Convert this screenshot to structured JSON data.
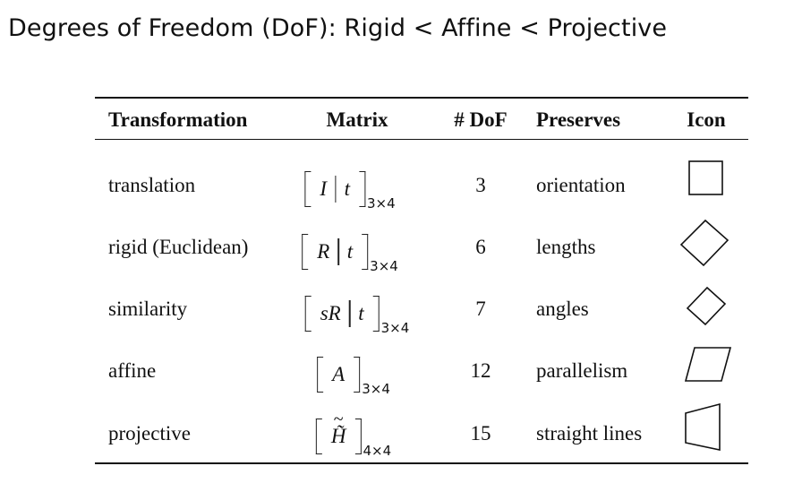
{
  "title": "Degrees of Freedom (DoF): Rigid < Affine < Projective",
  "table": {
    "headers": {
      "transformation": "Transformation",
      "matrix": "Matrix",
      "dof": "# DoF",
      "preserves": "Preserves",
      "icon": "Icon"
    },
    "rows": [
      {
        "name": "translation",
        "matrix": {
          "left": "I",
          "right": "t",
          "sub": "3×4"
        },
        "dof": "3",
        "preserves": "orientation",
        "icon": "square-icon"
      },
      {
        "name": "rigid (Euclidean)",
        "matrix": {
          "left": "R",
          "right": "t",
          "sub": "3×4"
        },
        "dof": "6",
        "preserves": "lengths",
        "icon": "rotated-square-icon"
      },
      {
        "name": "similarity",
        "matrix": {
          "left": "sR",
          "right": "t",
          "sub": "3×4"
        },
        "dof": "7",
        "preserves": "angles",
        "icon": "small-rotated-square-icon"
      },
      {
        "name": "affine",
        "matrix": {
          "left": "A",
          "sub": "3×4"
        },
        "dof": "12",
        "preserves": "parallelism",
        "icon": "parallelogram-icon"
      },
      {
        "name": "projective",
        "matrix": {
          "left": "H̃",
          "sub": "4×4"
        },
        "dof": "15",
        "preserves": "straight lines",
        "icon": "trapezoid-icon"
      }
    ]
  }
}
